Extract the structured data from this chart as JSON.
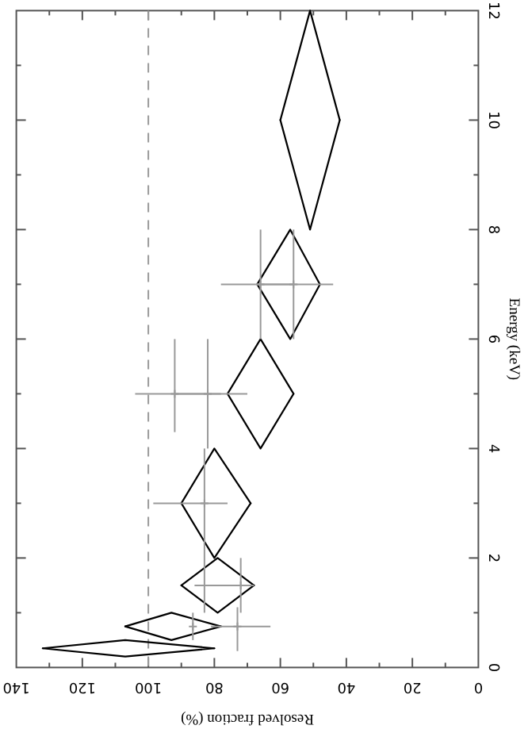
{
  "chart_data": {
    "type": "scatter",
    "xlabel": "Resolved fraction (%)",
    "ylabel": "Energy (keV)",
    "xlim": [
      140,
      0
    ],
    "ylim": [
      0,
      12
    ],
    "grid": false,
    "yticks": [
      0,
      {
        "value": 1,
        "label": null
      },
      2,
      {
        "value": 3,
        "label": null
      },
      4,
      {
        "value": 5,
        "label": null
      },
      6,
      {
        "value": 7,
        "label": null
      },
      8,
      {
        "value": 9,
        "label": null
      },
      10,
      {
        "value": 11,
        "label": null
      },
      12
    ],
    "xticks": [
      0,
      {
        "value": 10,
        "label": null
      },
      20,
      {
        "value": 30,
        "label": null
      },
      40,
      {
        "value": 50,
        "label": null
      },
      60,
      {
        "value": 70,
        "label": null
      },
      80,
      {
        "value": 90,
        "label": null
      },
      100,
      {
        "value": 110,
        "label": null
      },
      120,
      {
        "value": 130,
        "label": null
      },
      140
    ],
    "series": [
      {
        "type": "line",
        "color": "#000000",
        "x": [
          132,
          107,
          80
        ],
        "values": [
          0.35,
          0.5,
          0.35
        ]
      },
      {
        "type": "line",
        "color": "#000000",
        "x": [
          132,
          107,
          80
        ],
        "values": [
          0.35,
          0.2,
          0.35
        ]
      },
      {
        "type": "line",
        "color": "#000000",
        "x": [
          107,
          93,
          78
        ],
        "values": [
          0.75,
          1,
          0.75
        ]
      },
      {
        "type": "line",
        "color": "#000000",
        "x": [
          107,
          93,
          78
        ],
        "values": [
          0.75,
          0.5,
          0.75
        ]
      },
      {
        "type": "line",
        "color": "#000000",
        "x": [
          90,
          79,
          68
        ],
        "values": [
          1.5,
          2,
          1.5
        ]
      },
      {
        "type": "line",
        "color": "#000000",
        "x": [
          90,
          79,
          68
        ],
        "values": [
          1.5,
          1,
          1.5
        ]
      },
      {
        "type": "line",
        "color": "#000000",
        "x": [
          90,
          80,
          69
        ],
        "values": [
          3,
          4,
          3
        ]
      },
      {
        "type": "line",
        "color": "#000000",
        "x": [
          90,
          80,
          69
        ],
        "values": [
          3,
          2,
          3
        ]
      },
      {
        "type": "line",
        "color": "#000000",
        "x": [
          76,
          66,
          56
        ],
        "values": [
          5,
          6,
          5
        ]
      },
      {
        "type": "line",
        "color": "#000000",
        "x": [
          76,
          66,
          56
        ],
        "values": [
          5,
          4,
          5
        ]
      },
      {
        "type": "line",
        "color": "#000000",
        "x": [
          67,
          57,
          48
        ],
        "values": [
          7,
          8,
          7
        ]
      },
      {
        "type": "line",
        "color": "#000000",
        "x": [
          67,
          57,
          48
        ],
        "values": [
          7,
          6,
          7
        ]
      },
      {
        "type": "line",
        "color": "#000000",
        "x": [
          60,
          51,
          42
        ],
        "values": [
          10,
          12,
          10
        ]
      },
      {
        "type": "line",
        "color": "#000000",
        "x": [
          60,
          51,
          42
        ],
        "values": [
          10,
          8,
          10
        ]
      },
      {
        "color": "#999999",
        "marker": "cross",
        "values": [
          0.75,
          0.75,
          1.5,
          3,
          5,
          5,
          7,
          7
        ],
        "x": [
          73,
          86.5,
          72,
          83,
          92,
          82,
          66,
          56
        ],
        "errors": [
          [
            0.3,
            1.1
          ],
          [
            0.5,
            1
          ],
          [
            1,
            2
          ],
          [
            1,
            4
          ],
          [
            4.3,
            6
          ],
          [
            4,
            6
          ],
          [
            6,
            8
          ],
          [
            6,
            8
          ]
        ],
        "xerrors": [
          [
            63,
            81
          ],
          null,
          [
            68,
            86
          ],
          [
            76,
            98.5
          ],
          [
            78,
            104
          ],
          [
            70,
            92
          ],
          [
            56,
            78
          ],
          [
            44,
            67
          ]
        ]
      }
    ],
    "ref_lines": [
      {
        "axis": "x",
        "value": 100,
        "color": "#999999",
        "line_style": "dashed"
      }
    ]
  }
}
